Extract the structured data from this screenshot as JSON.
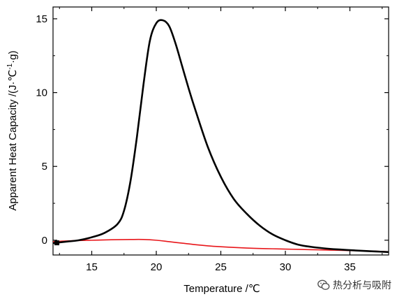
{
  "chart_data": {
    "type": "line",
    "xlabel": "Temperature /℃",
    "ylabel_main": "Apparent Heat Capacity /(J·℃",
    "ylabel_sup": "-1",
    "ylabel_tail": "·g)",
    "xlim": [
      12,
      38
    ],
    "ylim": [
      -1,
      15.8
    ],
    "x_ticks": [
      15,
      20,
      25,
      30,
      35
    ],
    "y_ticks": [
      0,
      5,
      10,
      15
    ],
    "grid": false,
    "legend": "none",
    "series": [
      {
        "color": "#000000",
        "x": [
          12,
          13,
          14,
          15,
          16,
          17,
          17.5,
          18,
          18.5,
          19,
          19.5,
          20,
          20.5,
          21,
          21.5,
          22,
          22.5,
          23,
          24,
          25,
          26,
          27,
          28,
          29,
          30,
          31,
          32,
          33,
          34,
          35,
          36,
          37,
          38
        ],
        "y": [
          -0.2,
          -0.1,
          0.0,
          0.2,
          0.5,
          1.1,
          2.0,
          4.0,
          7.0,
          10.5,
          13.5,
          14.7,
          14.9,
          14.5,
          13.3,
          11.8,
          10.3,
          8.9,
          6.3,
          4.3,
          2.8,
          1.8,
          1.0,
          0.4,
          0.0,
          -0.3,
          -0.45,
          -0.55,
          -0.62,
          -0.67,
          -0.72,
          -0.76,
          -0.8
        ]
      },
      {
        "color": "#e8161a",
        "x": [
          12,
          13,
          14,
          15,
          16,
          17,
          18,
          19,
          20,
          21,
          22,
          23,
          24,
          25,
          26,
          27,
          28,
          29,
          30,
          31,
          32,
          33,
          34,
          35,
          36,
          37,
          38
        ],
        "y": [
          -0.1,
          -0.05,
          -0.02,
          0.0,
          0.02,
          0.04,
          0.05,
          0.05,
          0.0,
          -0.1,
          -0.2,
          -0.3,
          -0.38,
          -0.44,
          -0.49,
          -0.53,
          -0.56,
          -0.58,
          -0.6,
          -0.62,
          -0.64,
          -0.66,
          -0.68,
          -0.7,
          -0.72,
          -0.74,
          -0.78
        ]
      }
    ]
  },
  "watermark": {
    "text": "热分析与吸附",
    "icon": "wechat-icon"
  }
}
